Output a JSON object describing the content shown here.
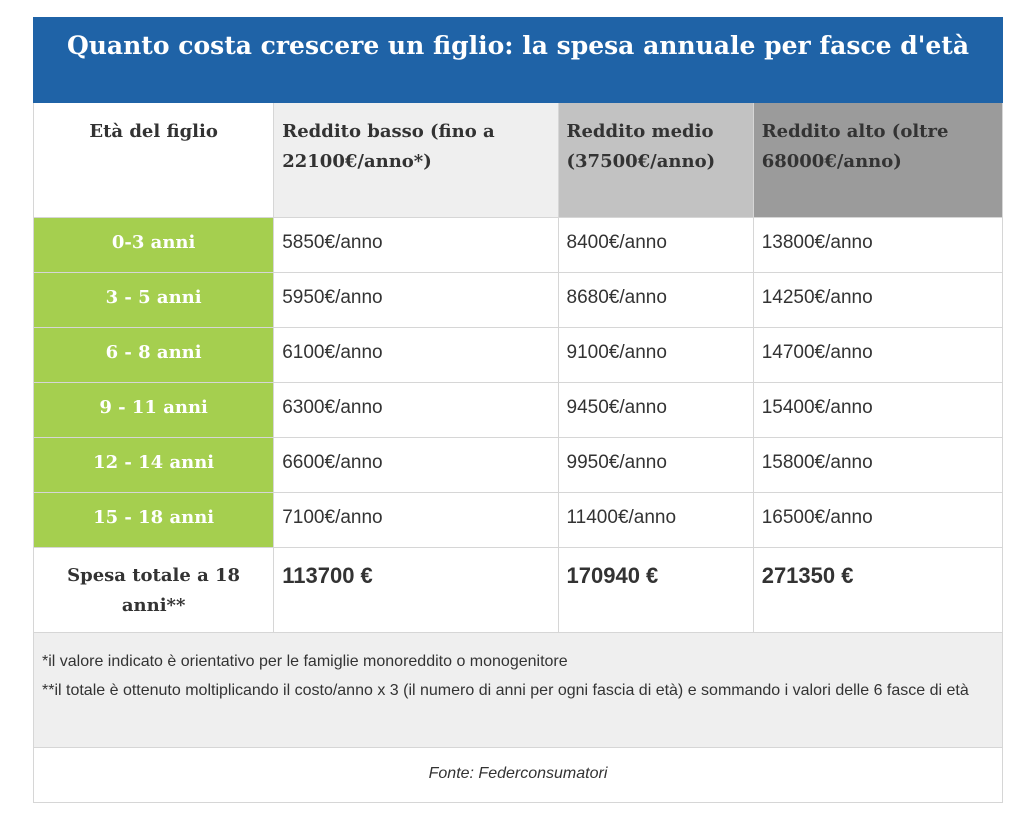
{
  "title": "Quanto costa crescere un figlio: la spesa annuale per fasce d'età",
  "headers": {
    "age": "Età del figlio",
    "low": "Reddito basso (fino a 22100€/anno*)",
    "mid": "Reddito medio (37500€/anno)",
    "high": "Reddito alto (oltre 68000€/anno)"
  },
  "rows": [
    {
      "age": "0-3 anni",
      "low": "5850€/anno",
      "mid": "8400€/anno",
      "high": "13800€/anno"
    },
    {
      "age": "3 - 5 anni",
      "low": "5950€/anno",
      "mid": "8680€/anno",
      "high": "14250€/anno"
    },
    {
      "age": "6 - 8 anni",
      "low": "6100€/anno",
      "mid": "9100€/anno",
      "high": "14700€/anno"
    },
    {
      "age": "9 - 11 anni",
      "low": "6300€/anno",
      "mid": "9450€/anno",
      "high": "15400€/anno"
    },
    {
      "age": "12 - 14 anni",
      "low": "6600€/anno",
      "mid": "9950€/anno",
      "high": "15800€/anno"
    },
    {
      "age": "15 - 18 anni",
      "low": "7100€/anno",
      "mid": "11400€/anno",
      "high": "16500€/anno"
    }
  ],
  "total": {
    "label": "Spesa totale a 18 anni**",
    "low": "113700 €",
    "mid": "170940 €",
    "high": "271350 €"
  },
  "notes": [
    "*il valore indicato è orientativo per le famiglie monoreddito o monogenitore",
    "**il totale è ottenuto moltiplicando il costo/anno x 3 (il numero di anni per ogni fascia di età) e sommando i valori delle 6 fasce di età"
  ],
  "source": "Fonte: Federconsumatori",
  "colors": {
    "title_bg": "#1f63a7",
    "age_bg": "#a5cf4f",
    "low_bg": "#efefef",
    "mid_bg": "#c2c2c2",
    "high_bg": "#9b9b9b"
  }
}
